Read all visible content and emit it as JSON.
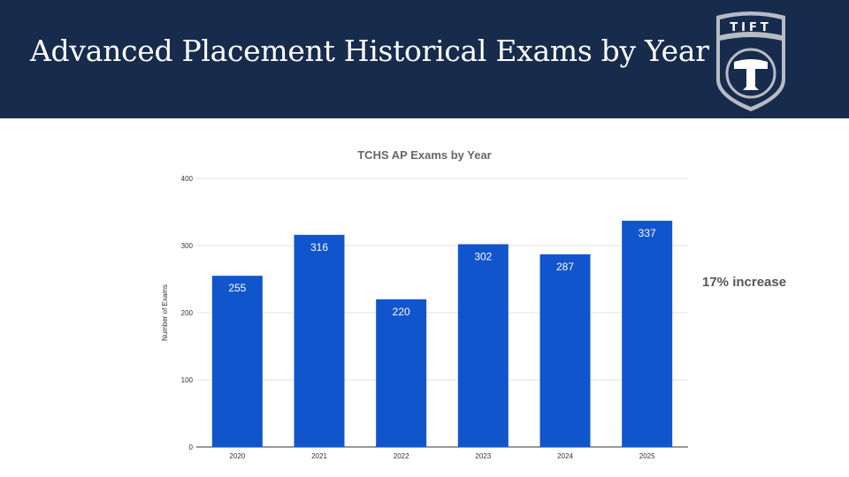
{
  "slide": {
    "title": "Advanced Placement Historical Exams by Year",
    "note": "17% increase"
  },
  "logo": {
    "text": "TIFT",
    "colors": {
      "shield": "#172b4d",
      "ring": "#b7bcc4",
      "mark": "#ffffff"
    }
  },
  "colors": {
    "header": "#172b4d",
    "bar": "#1155cc",
    "axis_text": "#444444",
    "grid": "#d9d9d9"
  },
  "chart_data": {
    "type": "bar",
    "title": "TCHS AP Exams by Year",
    "xlabel": "",
    "ylabel": "Number of Exams",
    "categories": [
      "2020",
      "2021",
      "2022",
      "2023",
      "2024",
      "2025"
    ],
    "values": [
      255,
      316,
      220,
      302,
      287,
      337
    ],
    "ylim": [
      0,
      400
    ],
    "yticks": [
      0,
      100,
      200,
      300,
      400
    ],
    "grid": true,
    "data_labels": true,
    "legend": "none"
  }
}
